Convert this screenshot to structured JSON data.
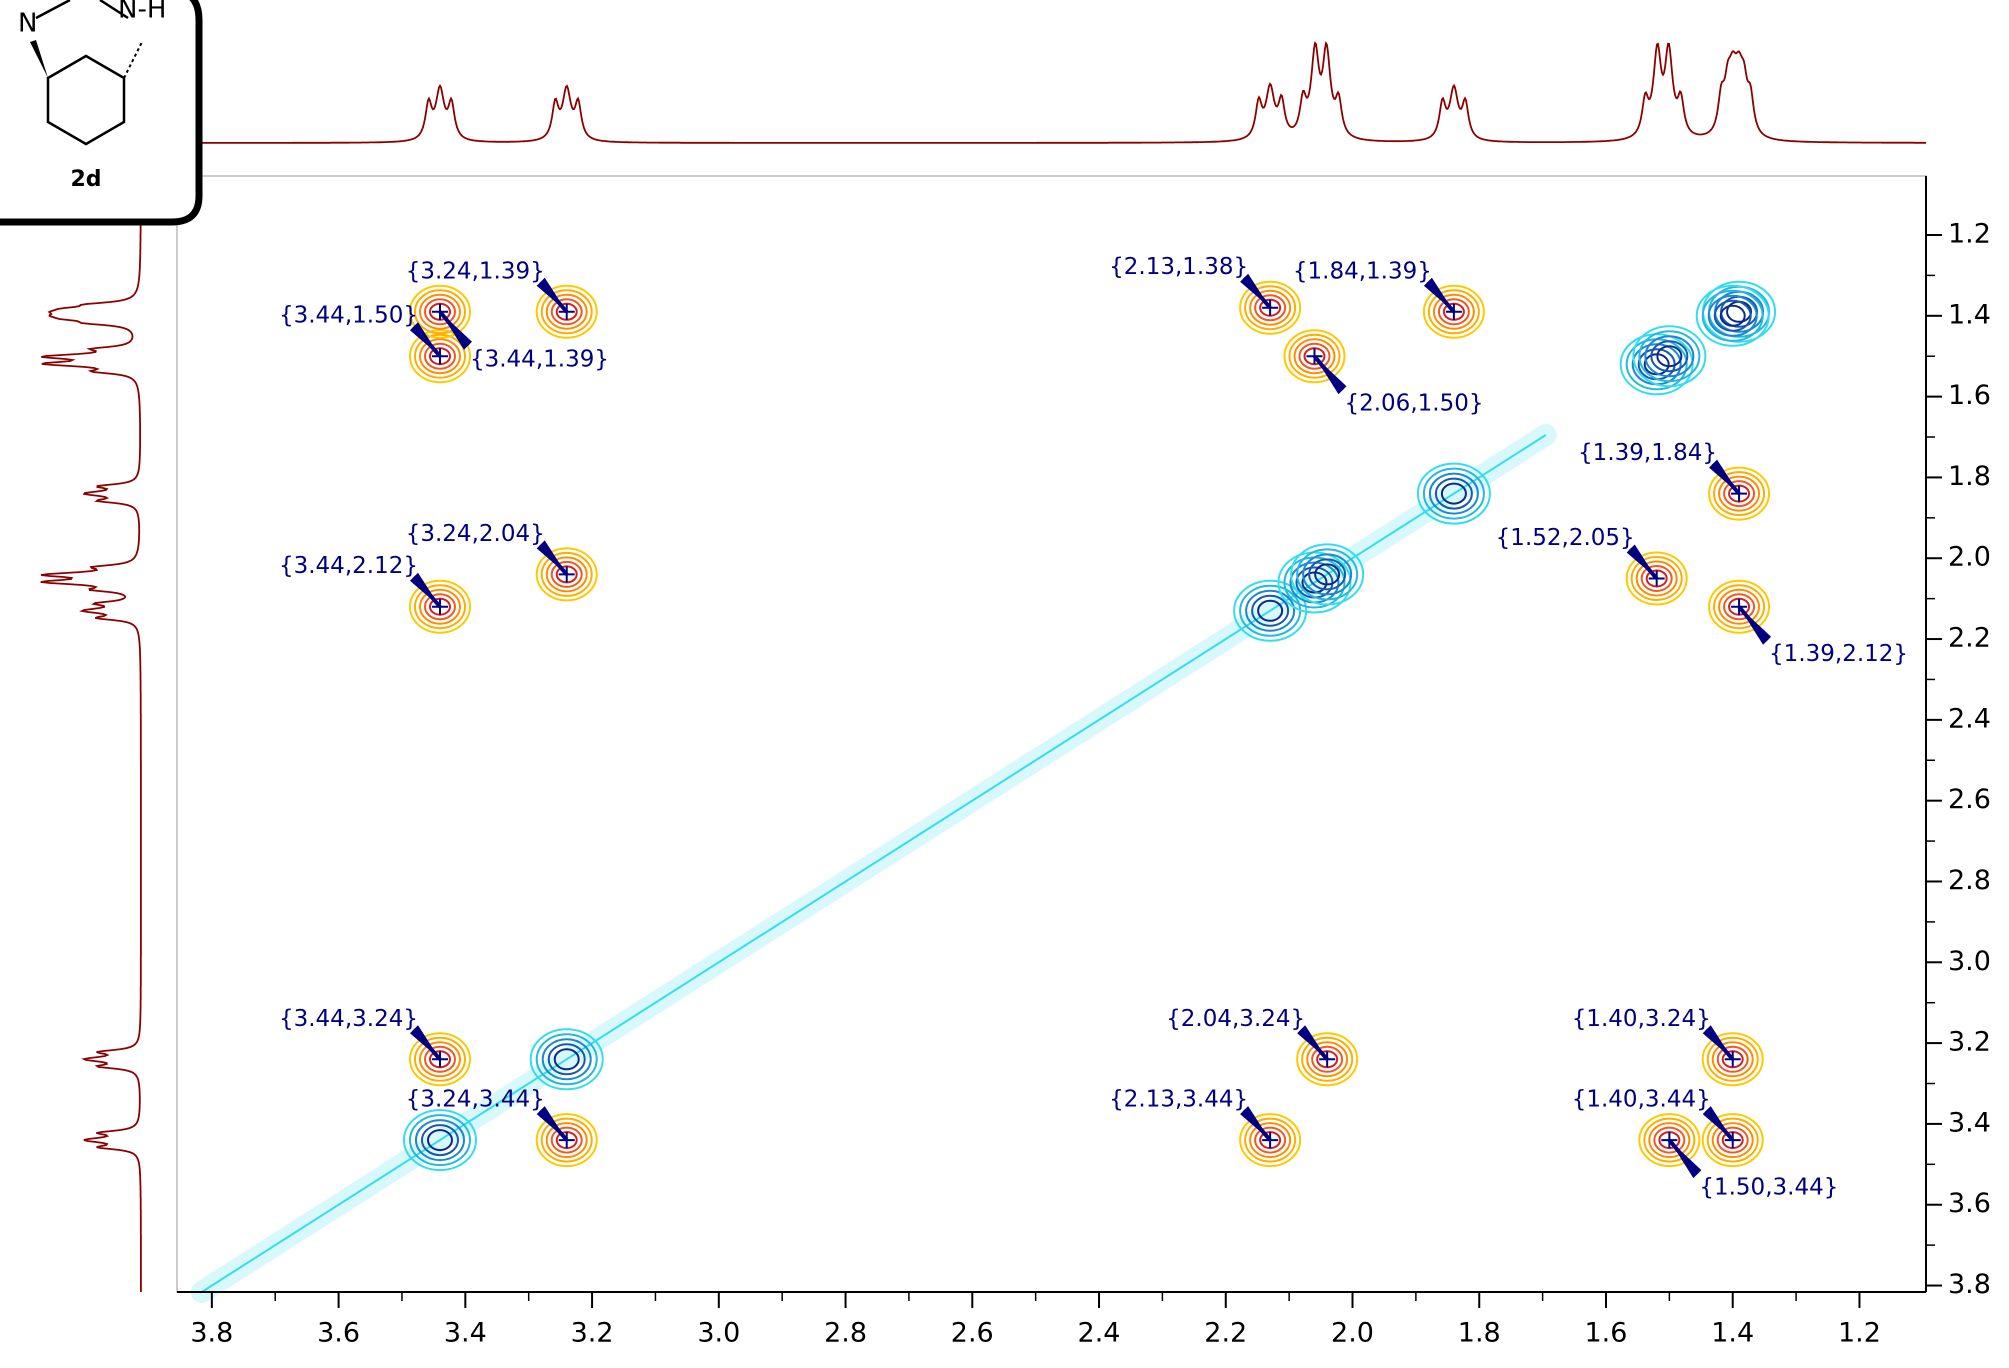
{
  "structure": {
    "label": "2d",
    "atoms": [
      "N",
      "N-H"
    ]
  },
  "chart_data": {
    "type": "scatter",
    "x": [
      3.24,
      3.44,
      3.44,
      3.44,
      3.24,
      2.13,
      1.84,
      2.06,
      1.39,
      1.52,
      1.39,
      3.44,
      3.24,
      2.04,
      2.13,
      1.4,
      1.4,
      1.5
    ],
    "values": [
      1.39,
      1.5,
      1.39,
      2.12,
      2.04,
      1.38,
      1.39,
      1.5,
      1.84,
      2.05,
      2.12,
      3.24,
      3.44,
      3.24,
      3.44,
      3.24,
      3.44,
      3.44
    ],
    "value_labels": [
      "{3.24,1.39}",
      "{3.44,1.50}",
      "{3.44,1.39}",
      "{3.44,2.12}",
      "{3.24,2.04}",
      "{2.13,1.38}",
      "{1.84,1.39}",
      "{2.06,1.50}",
      "{1.39,1.84}",
      "{1.52,2.05}",
      "{1.39,2.12}",
      "{3.44,3.24}",
      "{3.24,3.44}",
      "{2.04,3.24}",
      "{2.13,3.44}",
      "{1.40,3.24}",
      "{1.40,3.44}",
      "{1.50,3.44}"
    ],
    "color": "#000080",
    "xlim": [
      3.855,
      1.095
    ],
    "ylim": [
      1.054,
      3.816
    ],
    "xticks": [
      3.8,
      3.6,
      3.4,
      3.2,
      {
        "value": 3.0,
        "label": "3.0"
      },
      2.8,
      2.6,
      2.4,
      2.2,
      {
        "value": 2.0,
        "label": "2.0"
      },
      1.8,
      1.6,
      1.4,
      1.2
    ],
    "yticks": [
      1.2,
      1.4,
      1.6,
      1.8,
      {
        "value": 2.0,
        "label": "2.0"
      },
      2.2,
      2.4,
      2.6,
      2.8,
      {
        "value": 3.0,
        "label": "3.0"
      },
      3.2,
      3.4,
      3.6,
      3.8
    ]
  }
}
